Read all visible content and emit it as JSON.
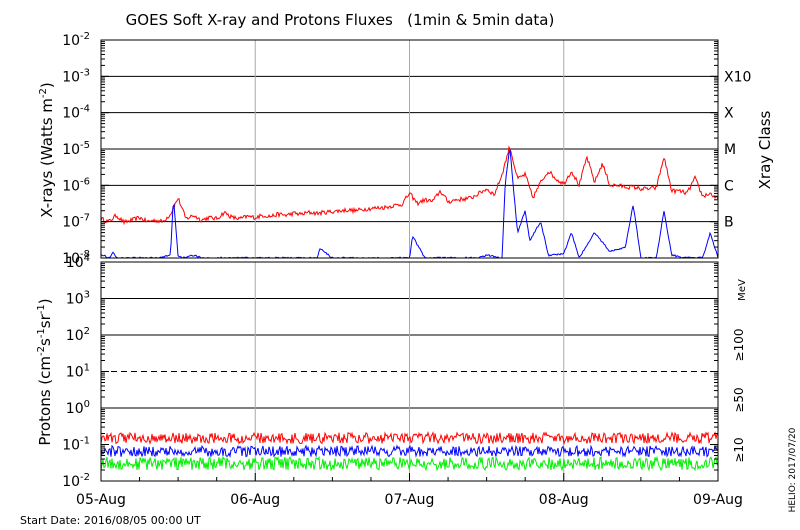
{
  "chart_data": [
    {
      "type": "line",
      "title": "GOES Soft X-ray and Protons Fluxes   (1min & 5min data)",
      "ylabel": "X-rays (Watts m",
      "ylabel_sup": "-2",
      "ylabel_close": ")",
      "ylabel_right": "Xray Class",
      "y_scale": "log",
      "ylim": [
        1e-08,
        0.01
      ],
      "y_ticks": [
        {
          "value": 0.01,
          "base": "10",
          "exp": "-2"
        },
        {
          "value": 0.001,
          "base": "10",
          "exp": "-3"
        },
        {
          "value": 0.0001,
          "base": "10",
          "exp": "-4"
        },
        {
          "value": 1e-05,
          "base": "10",
          "exp": "-5"
        },
        {
          "value": 1e-06,
          "base": "10",
          "exp": "-6"
        },
        {
          "value": 1e-07,
          "base": "10",
          "exp": "-7"
        },
        {
          "value": 1e-08,
          "base": "10",
          "exp": "-8"
        }
      ],
      "class_labels": [
        {
          "label": "X10",
          "value": 0.001
        },
        {
          "label": "X",
          "value": 0.0001
        },
        {
          "label": "M",
          "value": 1e-05
        },
        {
          "label": "C",
          "value": 1e-06
        },
        {
          "label": "B",
          "value": 1e-07
        }
      ],
      "grid_horizontal": [
        0.001,
        0.0001,
        1e-05,
        1e-06,
        1e-07
      ],
      "grid_vertical_days": [
        1,
        2,
        3
      ],
      "series": [
        {
          "color": "#ff0000",
          "x_days": [
            0,
            0.05,
            0.1,
            0.15,
            0.2,
            0.25,
            0.3,
            0.35,
            0.4,
            0.45,
            0.5,
            0.55,
            0.6,
            0.65,
            0.7,
            0.75,
            0.8,
            0.85,
            0.9,
            0.95,
            1.0,
            1.05,
            1.1,
            1.15,
            1.2,
            1.25,
            1.3,
            1.35,
            1.4,
            1.45,
            1.5,
            1.55,
            1.6,
            1.65,
            1.7,
            1.75,
            1.8,
            1.85,
            1.9,
            1.95,
            2.0,
            2.05,
            2.1,
            2.15,
            2.2,
            2.25,
            2.3,
            2.35,
            2.4,
            2.45,
            2.5,
            2.55,
            2.6,
            2.65,
            2.7,
            2.75,
            2.8,
            2.85,
            2.9,
            2.95,
            3.0,
            3.05,
            3.1,
            3.15,
            3.2,
            3.25,
            3.3,
            3.35,
            3.4,
            3.45,
            3.5,
            3.55,
            3.6,
            3.65,
            3.7,
            3.75,
            3.8,
            3.85,
            3.9,
            3.95,
            4.0
          ],
          "values": [
            1.2e-07,
            1e-07,
            1.5e-07,
            9.5e-08,
            1.1e-07,
            1.3e-07,
            1e-07,
            1.1e-07,
            1e-07,
            1.6e-07,
            4.5e-07,
            1.2e-07,
            1.5e-07,
            1.1e-07,
            1.3e-07,
            1.2e-07,
            1.8e-07,
            1.3e-07,
            1.2e-07,
            1.4e-07,
            1.3e-07,
            1.5e-07,
            1.4e-07,
            1.6e-07,
            1.5e-07,
            1.7e-07,
            1.6e-07,
            1.8e-07,
            1.7e-07,
            1.8e-07,
            1.9e-07,
            2e-07,
            2.1e-07,
            2e-07,
            2.2e-07,
            2.3e-07,
            2.4e-07,
            2.5e-07,
            2.8e-07,
            3e-07,
            6e-07,
            3.2e-07,
            4e-07,
            3.6e-07,
            7e-07,
            3.5e-07,
            4e-07,
            4.2e-07,
            4.5e-07,
            6e-07,
            8e-07,
            5.5e-07,
            2e-06,
            1.2e-05,
            1.5e-06,
            2e-06,
            4.5e-07,
            1.2e-06,
            2.5e-06,
            1.5e-06,
            1.1e-06,
            2.5e-06,
            1e-06,
            6e-06,
            1.2e-06,
            4e-06,
            1e-06,
            1e-06,
            9e-07,
            9e-07,
            8e-07,
            8e-07,
            8.5e-07,
            6e-06,
            7e-07,
            7e-07,
            6e-07,
            1.6e-06,
            5e-07,
            6e-07,
            4e-07
          ]
        },
        {
          "color": "#0000ff",
          "x_days": [
            0,
            0.05,
            0.08,
            0.1,
            0.2,
            0.3,
            0.38,
            0.45,
            0.47,
            0.5,
            0.55,
            0.6,
            0.65,
            1.0,
            1.4,
            1.42,
            1.5,
            1.8,
            2.0,
            2.02,
            2.1,
            2.2,
            2.3,
            2.45,
            2.5,
            2.6,
            2.62,
            2.65,
            2.7,
            2.75,
            2.78,
            2.85,
            2.9,
            3.0,
            3.05,
            3.1,
            3.2,
            3.3,
            3.4,
            3.45,
            3.5,
            3.6,
            3.65,
            3.7,
            3.8,
            3.9,
            3.95,
            4.0
          ],
          "values": [
            1.3e-08,
            1e-08,
            1.4e-08,
            1e-08,
            1e-08,
            1e-08,
            1e-08,
            1.2e-08,
            4.5e-07,
            1.1e-08,
            1e-08,
            1.2e-08,
            1e-08,
            1e-08,
            1e-08,
            1.8e-08,
            1e-08,
            1e-08,
            1e-08,
            4e-08,
            1e-08,
            1e-08,
            1e-08,
            1e-08,
            1.2e-08,
            1e-08,
            1e-06,
            1.2e-05,
            5e-08,
            2e-07,
            3e-08,
            1e-07,
            1.2e-08,
            1.3e-08,
            5e-08,
            1e-08,
            5e-08,
            1.5e-08,
            2e-08,
            3e-07,
            1e-08,
            1e-08,
            2e-07,
            1.2e-08,
            1e-08,
            1e-08,
            5e-08,
            1e-08
          ]
        }
      ]
    },
    {
      "type": "line",
      "ylabel": "Protons (cm",
      "ylabel_sup1": "-2",
      "ylabel_mid": "s",
      "ylabel_sup2": "-1",
      "ylabel_mid2": "sr",
      "ylabel_sup3": "-1",
      "ylabel_close": ")",
      "y_scale": "log",
      "ylim": [
        0.01,
        10000
      ],
      "y_ticks": [
        {
          "value": 10000,
          "base": "10",
          "exp": "4"
        },
        {
          "value": 1000,
          "base": "10",
          "exp": "3"
        },
        {
          "value": 100,
          "base": "10",
          "exp": "2"
        },
        {
          "value": 10,
          "base": "10",
          "exp": "1"
        },
        {
          "value": 1,
          "base": "10",
          "exp": "0"
        },
        {
          "value": 0.1,
          "base": "10",
          "exp": "-1"
        },
        {
          "value": 0.01,
          "base": "10",
          "exp": "-2"
        }
      ],
      "grid_horizontal": [
        1000,
        100,
        1
      ],
      "grid_dashed": [
        10
      ],
      "grid_vertical_days": [
        1,
        2,
        3
      ],
      "energy_unit": "MeV",
      "series": [
        {
          "name": "≥10",
          "color": "#ff0000",
          "mean": 0.15,
          "spread": 0.3
        },
        {
          "name": "≥50",
          "color": "#0000ff",
          "mean": 0.065,
          "spread": 0.3
        },
        {
          "name": "≥100",
          "color": "#00ee00",
          "mean": 0.03,
          "spread": 0.35
        }
      ]
    }
  ],
  "x_axis": {
    "categories": [
      "05-Aug",
      "06-Aug",
      "07-Aug",
      "08-Aug",
      "09-Aug"
    ],
    "start_date_label": "Start Date: 2016/08/05 00:00 UT"
  },
  "credit": "HELIO: 2017/07/20",
  "colors": {
    "xray_long": "#ff0000",
    "xray_short": "#0000ff",
    "p10": "#ff0000",
    "p50": "#0000ff",
    "p100": "#00ee00"
  }
}
